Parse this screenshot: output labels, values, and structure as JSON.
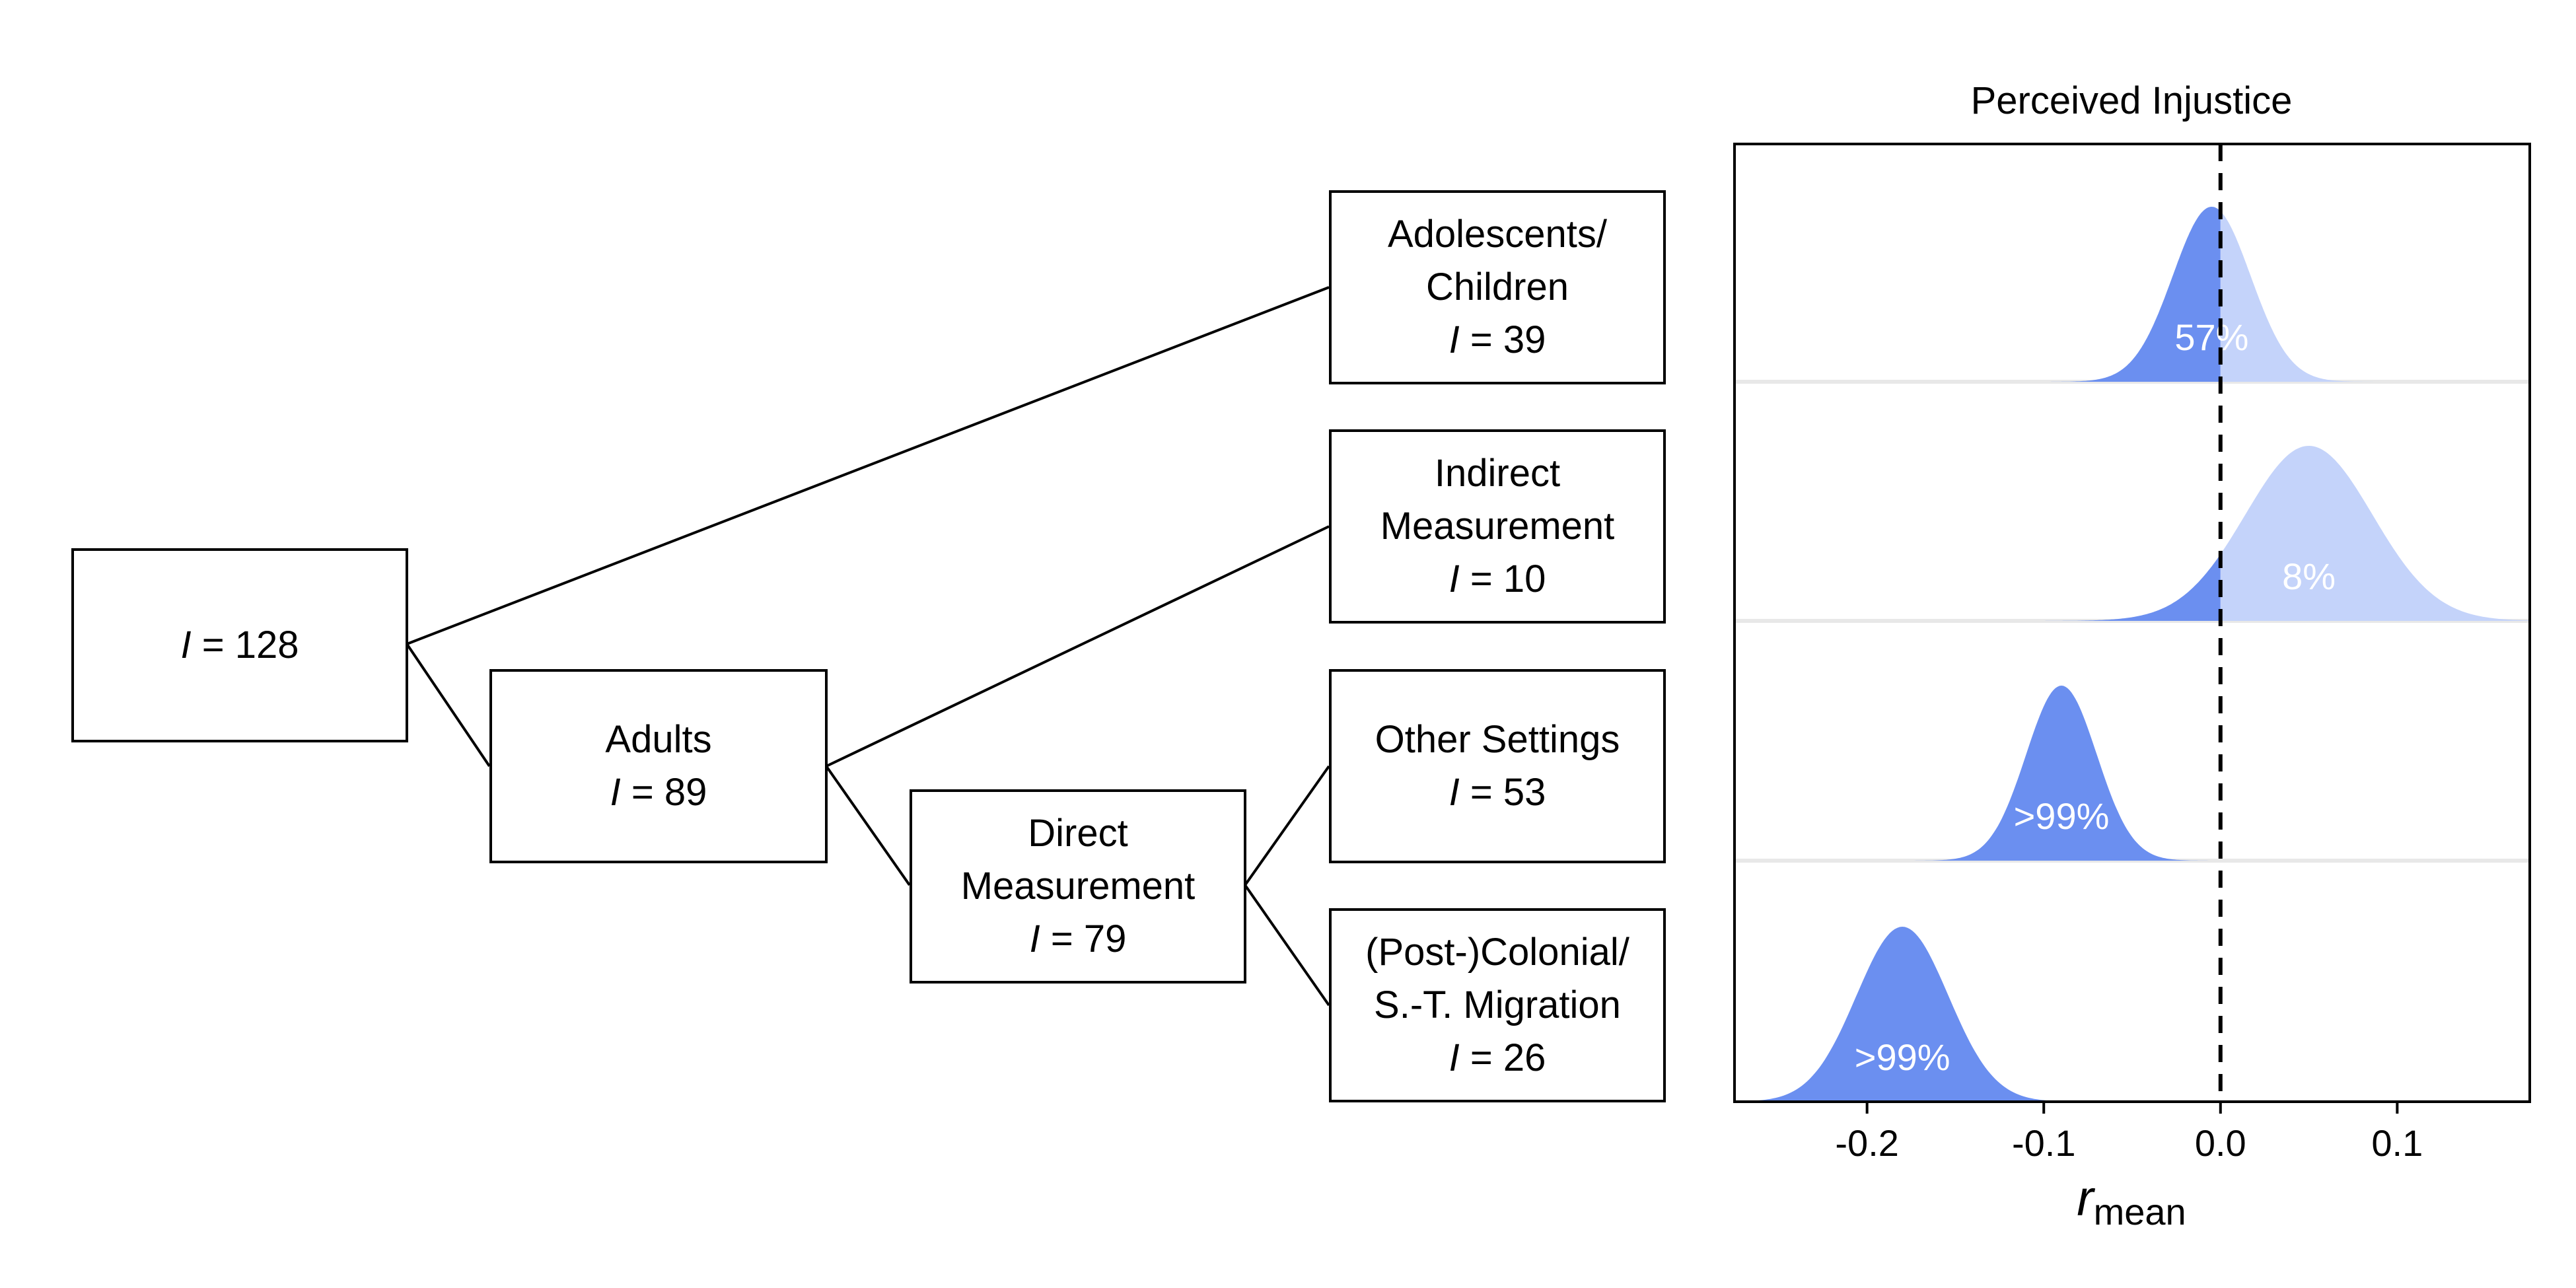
{
  "tree": {
    "root": {
      "count_label": "I",
      "count_value": "= 128"
    },
    "nodes": [
      {
        "id": "adolescents",
        "label_lines": [
          "Adolescents/",
          "Children"
        ],
        "count_label": "I",
        "count_value": "= 39"
      },
      {
        "id": "indirect",
        "label_lines": [
          "Indirect",
          "Measurement"
        ],
        "count_label": "I",
        "count_value": "= 10"
      },
      {
        "id": "adults",
        "label_lines": [
          "Adults"
        ],
        "count_label": "I",
        "count_value": "= 89"
      },
      {
        "id": "other",
        "label_lines": [
          "Other Settings"
        ],
        "count_label": "I",
        "count_value": "= 53"
      },
      {
        "id": "direct",
        "label_lines": [
          "Direct",
          "Measurement"
        ],
        "count_label": "I",
        "count_value": "= 79"
      },
      {
        "id": "colonial",
        "label_lines": [
          "(Post-)Colonial/",
          "S.-T. Migration"
        ],
        "count_label": "I",
        "count_value": "= 26"
      }
    ]
  },
  "chart_data": {
    "type": "area",
    "title": "Perceived Injustice",
    "xlabel_main": "r",
    "xlabel_sub": "mean",
    "xlim": [
      -0.275,
      0.175
    ],
    "xticks": [
      -0.2,
      -0.1,
      0.0,
      0.1
    ],
    "xtick_labels": [
      "-0.2",
      "-0.1",
      "0.0",
      "0.1"
    ],
    "reference_line_x": 0.0,
    "colors": {
      "below_zero": "#6b8ff0",
      "above_zero": "#c4d3fa",
      "baseline": "#e8e8e8",
      "label": "#ffffff"
    },
    "series": [
      {
        "node": "Adolescents/Children",
        "mean": -0.005,
        "sd": 0.022,
        "label": "57%"
      },
      {
        "node": "Indirect Measurement",
        "mean": 0.05,
        "sd": 0.036,
        "label": "8%"
      },
      {
        "node": "Other Settings",
        "mean": -0.09,
        "sd": 0.02,
        "label": ">99%"
      },
      {
        "node": "(Post-)Colonial/S.-T. Migration",
        "mean": -0.18,
        "sd": 0.026,
        "label": ">99%"
      }
    ]
  }
}
